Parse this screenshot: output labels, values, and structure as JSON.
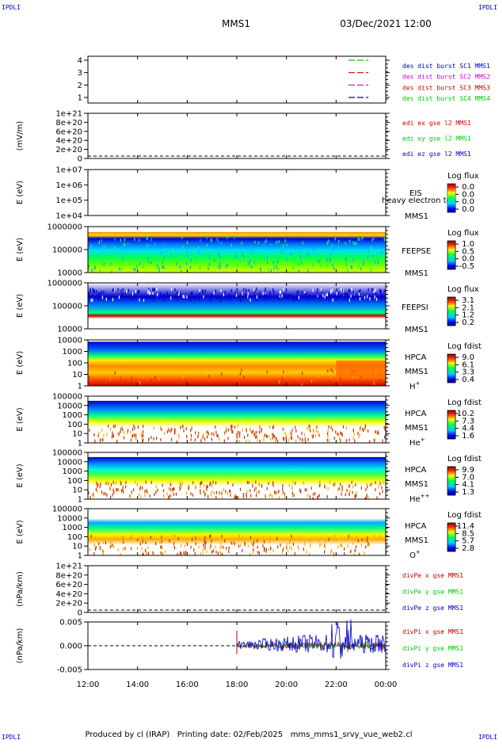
{
  "header": {
    "left_tag": "IPDLI",
    "right_tag": "IPDLI",
    "mission": "MMS1",
    "datetime": "03/Dec/2021 12:00",
    "bottom_left_tag": "IPDLI",
    "bottom_right_tag": "IPDLI"
  },
  "footer": {
    "text": "Produced by cl (IRAP)   Printing date: 02/Feb/2025   mms_mms1_srvy_vue_web2.cl"
  },
  "colors": {
    "frame": "#000000",
    "blue": "#0000cc",
    "red": "#cc0000",
    "green": "#00cc00",
    "magenta": "#cc00cc",
    "cb_top": "#8b0000",
    "cb_bottom": "#00008b"
  },
  "chart_data": {
    "type": "multi-panel time series",
    "x_axis": {
      "ticks": [
        "12:00",
        "14:00",
        "16:00",
        "18:00",
        "20:00",
        "22:00",
        "00:00"
      ],
      "range_hours": [
        12,
        24
      ]
    },
    "panels": [
      {
        "id": "burst",
        "type": "line",
        "ylabel": "",
        "yticks": [
          "4",
          "3",
          "2",
          "1"
        ],
        "legend": [
          {
            "label": "des dist burst SC1 MMS1",
            "color": "#0000cc"
          },
          {
            "label": "des dist burst SC2 MMS2",
            "color": "#cc00cc"
          },
          {
            "label": "des dist burst SC3 MMS3",
            "color": "#cc0000"
          },
          {
            "label": "des dist burst SC4 MMS4",
            "color": "#00cc00"
          }
        ],
        "segments": [
          {
            "y": 4,
            "color": "#00cc00",
            "x_start": 22.5,
            "x_end": 23.3
          },
          {
            "y": 3,
            "color": "#cc0000",
            "x_start": 22.5,
            "x_end": 23.3
          },
          {
            "y": 2,
            "color": "#cc00cc",
            "x_start": 22.5,
            "x_end": 23.3
          },
          {
            "y": 1,
            "color": "#0000cc",
            "x_start": 22.5,
            "x_end": 23.3
          }
        ]
      },
      {
        "id": "edi",
        "type": "line",
        "ylabel": "(mV/m)",
        "yticks": [
          "1e+21",
          "8e+20",
          "6e+20",
          "4e+20",
          "2e+20",
          "0"
        ],
        "legend": [
          {
            "label": "edi ex gse l2 MMS1",
            "color": "#cc0000"
          },
          {
            "label": "edi ey gse l2 MMS1",
            "color": "#00cc00"
          },
          {
            "label": "edi ez gse l2 MMS1",
            "color": "#0000cc"
          }
        ]
      },
      {
        "id": "eis",
        "type": "heatmap",
        "ylabel": "E (eV)",
        "yticks": [
          "1e+07",
          "1e+06",
          "1e+05",
          "1e+04"
        ],
        "labels": [
          "EIS",
          "heavy electron to",
          "MMS1"
        ],
        "colorbar": {
          "title": "Log flux",
          "ticks": [
            "0.0",
            "0.0",
            "0.0",
            "0.0"
          ]
        }
      },
      {
        "id": "feepse",
        "type": "heatmap",
        "ylabel": "E (eV)",
        "yticks": [
          "1000000",
          "100000",
          "10000"
        ],
        "labels": [
          "FEEPSE",
          "MMS1"
        ],
        "colorbar": {
          "title": "Log flux",
          "ticks": [
            "1.0",
            "0.5",
            "0.0",
            "-0.5"
          ]
        }
      },
      {
        "id": "feepsi",
        "type": "heatmap",
        "ylabel": "E (eV)",
        "yticks": [
          "1000000",
          "100000",
          "10000"
        ],
        "labels": [
          "FEEPSI",
          "MMS1"
        ],
        "colorbar": {
          "title": "Log flux",
          "ticks": [
            "3.1",
            "2.1",
            "1.2",
            "0.2"
          ]
        }
      },
      {
        "id": "hpca_h",
        "type": "heatmap",
        "ylabel": "E (eV)",
        "yticks": [
          "10000",
          "1000",
          "100",
          "10",
          "1"
        ],
        "labels": [
          "HPCA",
          "MMS1"
        ],
        "species": "H",
        "species_sup": "+",
        "colorbar": {
          "title": "Log fdist",
          "ticks": [
            "9.0",
            "6.1",
            "3.3",
            "0.4"
          ]
        }
      },
      {
        "id": "hpca_he",
        "type": "heatmap",
        "ylabel": "E (eV)",
        "yticks": [
          "100000",
          "10000",
          "1000",
          "100",
          "10",
          "1"
        ],
        "labels": [
          "HPCA",
          "MMS1"
        ],
        "species": "He",
        "species_sup": "+",
        "colorbar": {
          "title": "Log fdist",
          "ticks": [
            "10.2",
            "7.3",
            "4.4",
            "1.6"
          ]
        }
      },
      {
        "id": "hpca_hepp",
        "type": "heatmap",
        "ylabel": "E (eV)",
        "yticks": [
          "100000",
          "10000",
          "1000",
          "100",
          "10",
          "1"
        ],
        "labels": [
          "HPCA",
          "MMS1"
        ],
        "species": "He",
        "species_sup": "++",
        "colorbar": {
          "title": "Log fdist",
          "ticks": [
            "9.9",
            "7.0",
            "4.1",
            "1.3"
          ]
        }
      },
      {
        "id": "hpca_o",
        "type": "heatmap",
        "ylabel": "E (eV)",
        "yticks": [
          "100000",
          "10000",
          "1000",
          "100",
          "10",
          "1"
        ],
        "labels": [
          "HPCA",
          "MMS1"
        ],
        "species": "O",
        "species_sup": "+",
        "colorbar": {
          "title": "Log fdist",
          "ticks": [
            "11.4",
            "8.5",
            "5.7",
            "2.8"
          ]
        }
      },
      {
        "id": "divpe",
        "type": "line",
        "ylabel": "(nPa/km)",
        "yticks": [
          "1e+21",
          "8e+20",
          "6e+20",
          "4e+20",
          "2e+20",
          "0"
        ],
        "legend": [
          {
            "label": "divPe x gse MMS1",
            "color": "#cc0000"
          },
          {
            "label": "divPe y gse MMS1",
            "color": "#00cc00"
          },
          {
            "label": "divPe z gse MMS1",
            "color": "#0000cc"
          }
        ]
      },
      {
        "id": "divpi",
        "type": "line",
        "ylabel": "(nPa/km)",
        "yticks": [
          "0.005",
          "0.000",
          "-0.005"
        ],
        "ylim": [
          -0.007,
          0.007
        ],
        "legend": [
          {
            "label": "divPi x gse MMS1",
            "color": "#cc0000"
          },
          {
            "label": "divPi y gse MMS1",
            "color": "#00cc00"
          },
          {
            "label": "divPi z gse MMS1",
            "color": "#0000cc"
          }
        ],
        "data_start_hour": 18.0
      }
    ]
  }
}
